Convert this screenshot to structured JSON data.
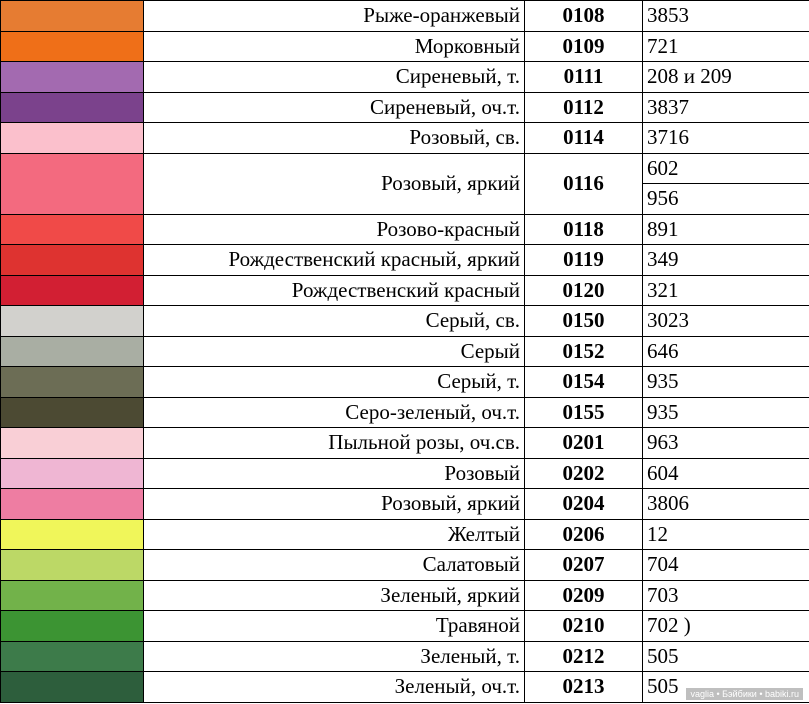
{
  "rows": [
    {
      "color": "#e67c32",
      "name": "Рыже-оранжевый",
      "code": "0108",
      "dmc": [
        "3853"
      ]
    },
    {
      "color": "#ef6f18",
      "name": "Морковный",
      "code": "0109",
      "dmc": [
        "721"
      ]
    },
    {
      "color": "#a36ab0",
      "name": "Сиреневый, т.",
      "code": "0111",
      "dmc": [
        "208 и 209"
      ]
    },
    {
      "color": "#7b428c",
      "name": "Сиреневый, оч.т.",
      "code": "0112",
      "dmc": [
        "3837"
      ]
    },
    {
      "color": "#fbc0cc",
      "name": "Розовый, св.",
      "code": "0114",
      "dmc": [
        "3716"
      ]
    },
    {
      "color": "#f36a7f",
      "name": "Розовый, яркий",
      "code": "0116",
      "dmc": [
        "602",
        "956"
      ]
    },
    {
      "color": "#f04a48",
      "name": "Розово-красный",
      "code": "0118",
      "dmc": [
        "891"
      ]
    },
    {
      "color": "#de3330",
      "name": "Рождественский красный, яркий",
      "code": "0119",
      "dmc": [
        "349"
      ]
    },
    {
      "color": "#d21f33",
      "name": "Рождественский красный",
      "code": "0120",
      "dmc": [
        "321"
      ]
    },
    {
      "color": "#d2d1cd",
      "name": "Серый, св.",
      "code": "0150",
      "dmc": [
        "3023"
      ]
    },
    {
      "color": "#a9aea3",
      "name": "Серый",
      "code": "0152",
      "dmc": [
        "646"
      ]
    },
    {
      "color": "#6c6d55",
      "name": "Серый, т.",
      "code": "0154",
      "dmc": [
        "935"
      ]
    },
    {
      "color": "#4c4a33",
      "name": "Серо-зеленый, оч.т.",
      "code": "0155",
      "dmc": [
        "935"
      ]
    },
    {
      "color": "#f9cfd6",
      "name": "Пыльной розы, оч.св.",
      "code": "0201",
      "dmc": [
        "963"
      ]
    },
    {
      "color": "#efb6d3",
      "name": "Розовый",
      "code": "0202",
      "dmc": [
        "604"
      ]
    },
    {
      "color": "#ee7da2",
      "name": "Розовый, яркий",
      "code": "0204",
      "dmc": [
        "3806"
      ]
    },
    {
      "color": "#f0f65a",
      "name": "Желтый",
      "code": "0206",
      "dmc": [
        "12"
      ]
    },
    {
      "color": "#bcd866",
      "name": "Салатовый",
      "code": "0207",
      "dmc": [
        "704"
      ]
    },
    {
      "color": "#72b24a",
      "name": "Зеленый, яркий",
      "code": "0209",
      "dmc": [
        "703"
      ]
    },
    {
      "color": "#3c9433",
      "name": "Травяной",
      "code": "0210",
      "dmc": [
        "702 )"
      ]
    },
    {
      "color": "#3d7b4a",
      "name": "Зеленый, т.",
      "code": "0212",
      "dmc": [
        "505"
      ]
    },
    {
      "color": "#2d5e3c",
      "name": "Зеленый, оч.т.",
      "code": "0213",
      "dmc": [
        "505"
      ]
    }
  ],
  "watermark": "vaglia • Бэйбики • babiki.ru"
}
